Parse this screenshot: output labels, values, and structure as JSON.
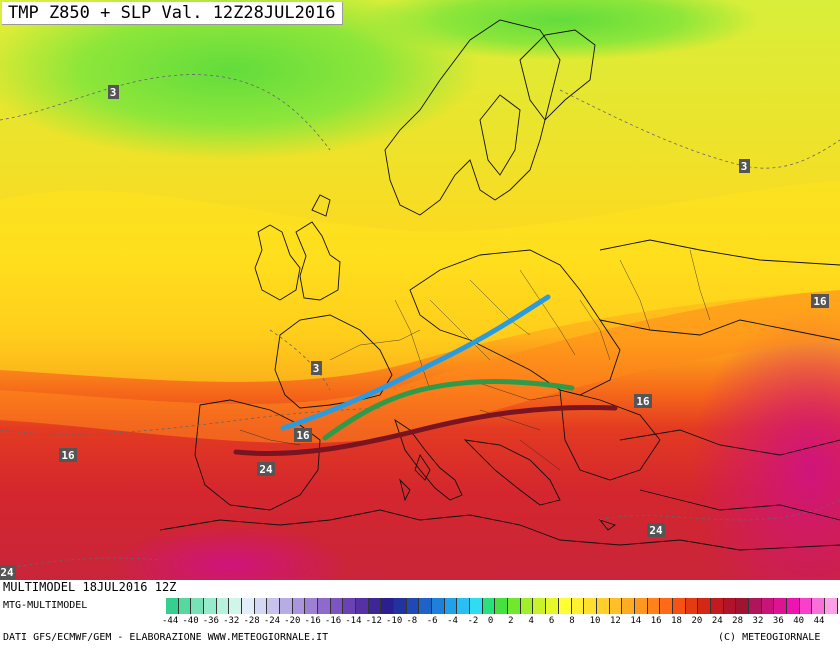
{
  "header": {
    "title": "TMP Z850 + SLP Val. 12Z28JUL2016"
  },
  "isotherm_labels": [
    {
      "text": "3"
    },
    {
      "text": "3"
    },
    {
      "text": "3"
    },
    {
      "text": "16"
    },
    {
      "text": "16"
    },
    {
      "text": "16"
    },
    {
      "text": "16"
    },
    {
      "text": "24"
    },
    {
      "text": "24"
    },
    {
      "text": "24"
    }
  ],
  "lines": [
    {
      "name": "blue-line",
      "color": "#2b9be0"
    },
    {
      "name": "green-line",
      "color": "#2f9a4a"
    },
    {
      "name": "dark-red-line",
      "color": "#7a1420"
    }
  ],
  "footer": {
    "model_run": "MULTIMODEL 18JUL2016 12Z",
    "model_name": "MTG-MULTIMODEL",
    "credits": "DATI GFS/ECMWF/GEM - ELABORAZIONE WWW.METEOGIORNALE.IT",
    "copyright": "(C) METEOGIORNALE"
  },
  "colorbar": {
    "labels": [
      "-44",
      "-40",
      "-36",
      "-32",
      "-28",
      "-24",
      "-20",
      "-16",
      "-16",
      "-14",
      "-12",
      "-10",
      "-8",
      "-6",
      "-4",
      "-2",
      "0",
      "2",
      "4",
      "6",
      "8",
      "10",
      "12",
      "14",
      "16",
      "18",
      "20",
      "24",
      "28",
      "32",
      "36",
      "40",
      "44"
    ],
    "colors": [
      "#35d08d",
      "#55d9a1",
      "#77e2b6",
      "#98ebca",
      "#b8f2dc",
      "#d2f5ea",
      "#e4eefa",
      "#d4d8f3",
      "#c6c2ec",
      "#b8ace4",
      "#aa96dc",
      "#9c80d4",
      "#8d6acb",
      "#7d55c0",
      "#6a42b4",
      "#5432a6",
      "#3d2698",
      "#2b1f90",
      "#2233a0",
      "#1f49b4",
      "#1f63c8",
      "#1f80da",
      "#22a0e8",
      "#28c0f2",
      "#30ddf0",
      "#2ae07a",
      "#46e040",
      "#70e830",
      "#a0ee2c",
      "#c8f22c",
      "#e6f82c",
      "#ffff33",
      "#fff033",
      "#ffe030",
      "#ffd02c",
      "#ffbf28",
      "#ffac24",
      "#ff9820",
      "#ff821c",
      "#ff6a18",
      "#f55214",
      "#e63a12",
      "#d42816",
      "#c21a1e",
      "#b01428",
      "#a01432",
      "#b0145a",
      "#c81478",
      "#dc1494",
      "#ee14b0",
      "#f840c8",
      "#fb70d8",
      "#fda0e8"
    ]
  }
}
